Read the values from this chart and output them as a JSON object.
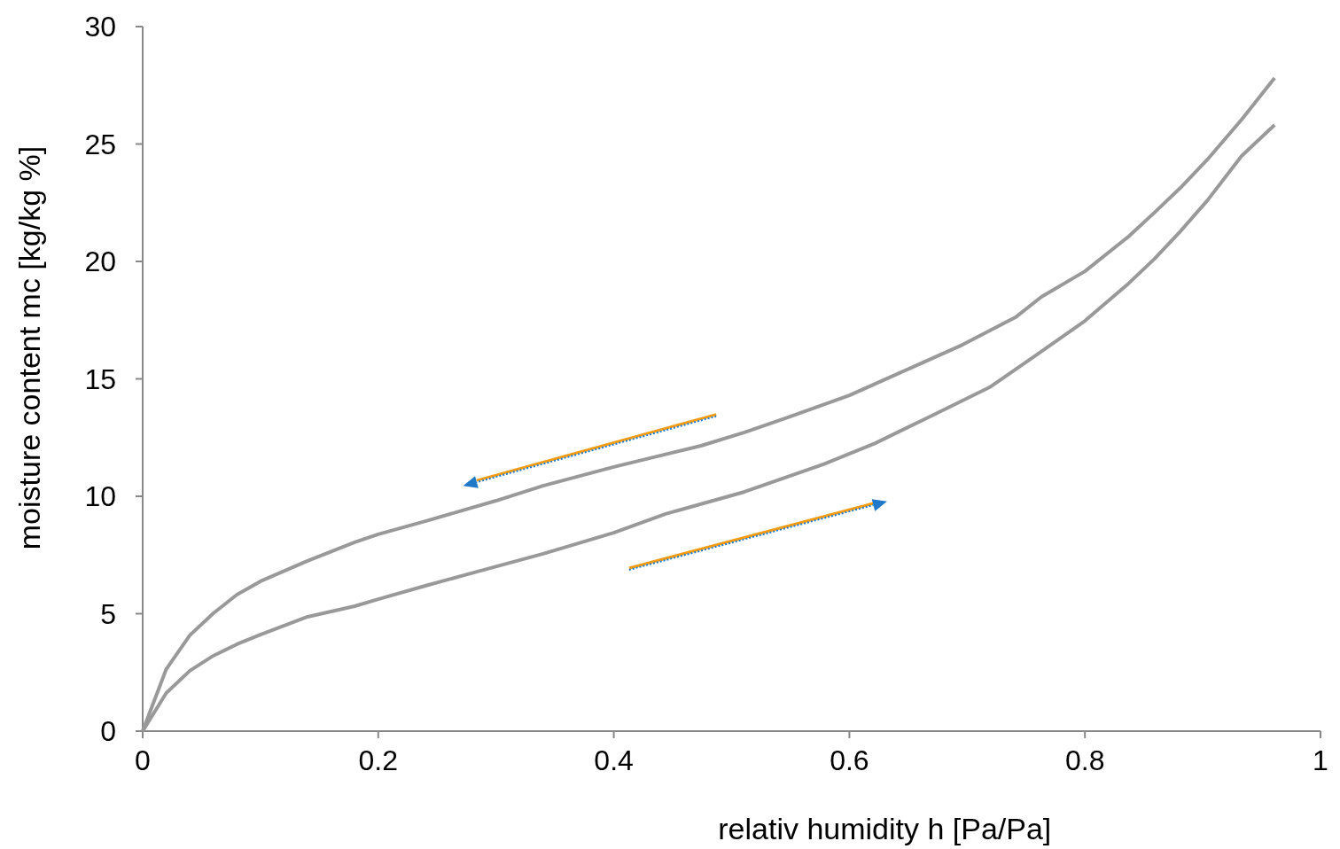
{
  "chart_data": {
    "type": "line",
    "xlabel": "relativ humidity  h [Pa/Pa]",
    "ylabel": "moisture content  mc  [kg/kg %]",
    "xlim": [
      0,
      1
    ],
    "ylim": [
      0,
      30
    ],
    "xticks": [
      0,
      0.2,
      0.4,
      0.6,
      0.8,
      1
    ],
    "yticks": [
      0,
      5,
      10,
      15,
      20,
      25,
      30
    ],
    "grid": false,
    "series": [
      {
        "color": "#999999",
        "x": [
          0,
          0.02,
          0.04,
          0.06,
          0.08,
          0.1,
          0.14,
          0.18,
          0.2,
          0.24,
          0.3,
          0.34,
          0.4,
          0.474,
          0.511,
          0.548,
          0.6,
          0.659,
          0.696,
          0.741,
          0.763,
          0.8,
          0.837,
          0.859,
          0.881,
          0.904,
          0.933,
          0.961
        ],
        "values": [
          0,
          2.64,
          4.08,
          5.02,
          5.81,
          6.38,
          7.25,
          8.04,
          8.38,
          8.94,
          9.81,
          10.45,
          11.25,
          12.15,
          12.72,
          13.36,
          14.3,
          15.62,
          16.45,
          17.62,
          18.49,
          19.58,
          21.06,
          22.08,
          23.13,
          24.34,
          26.04,
          27.81
        ]
      },
      {
        "color": "#999999",
        "x": [
          0,
          0.02,
          0.04,
          0.06,
          0.08,
          0.1,
          0.14,
          0.18,
          0.2,
          0.24,
          0.281,
          0.34,
          0.4,
          0.444,
          0.511,
          0.578,
          0.622,
          0.667,
          0.719,
          0.756,
          0.8,
          0.837,
          0.859,
          0.881,
          0.904,
          0.933,
          0.961
        ],
        "values": [
          0,
          1.62,
          2.57,
          3.21,
          3.7,
          4.11,
          4.87,
          5.32,
          5.62,
          6.19,
          6.75,
          7.55,
          8.45,
          9.25,
          10.19,
          11.36,
          12.26,
          13.36,
          14.64,
          15.92,
          17.47,
          19.06,
          20.11,
          21.28,
          22.6,
          24.49,
          25.81
        ]
      }
    ]
  }
}
